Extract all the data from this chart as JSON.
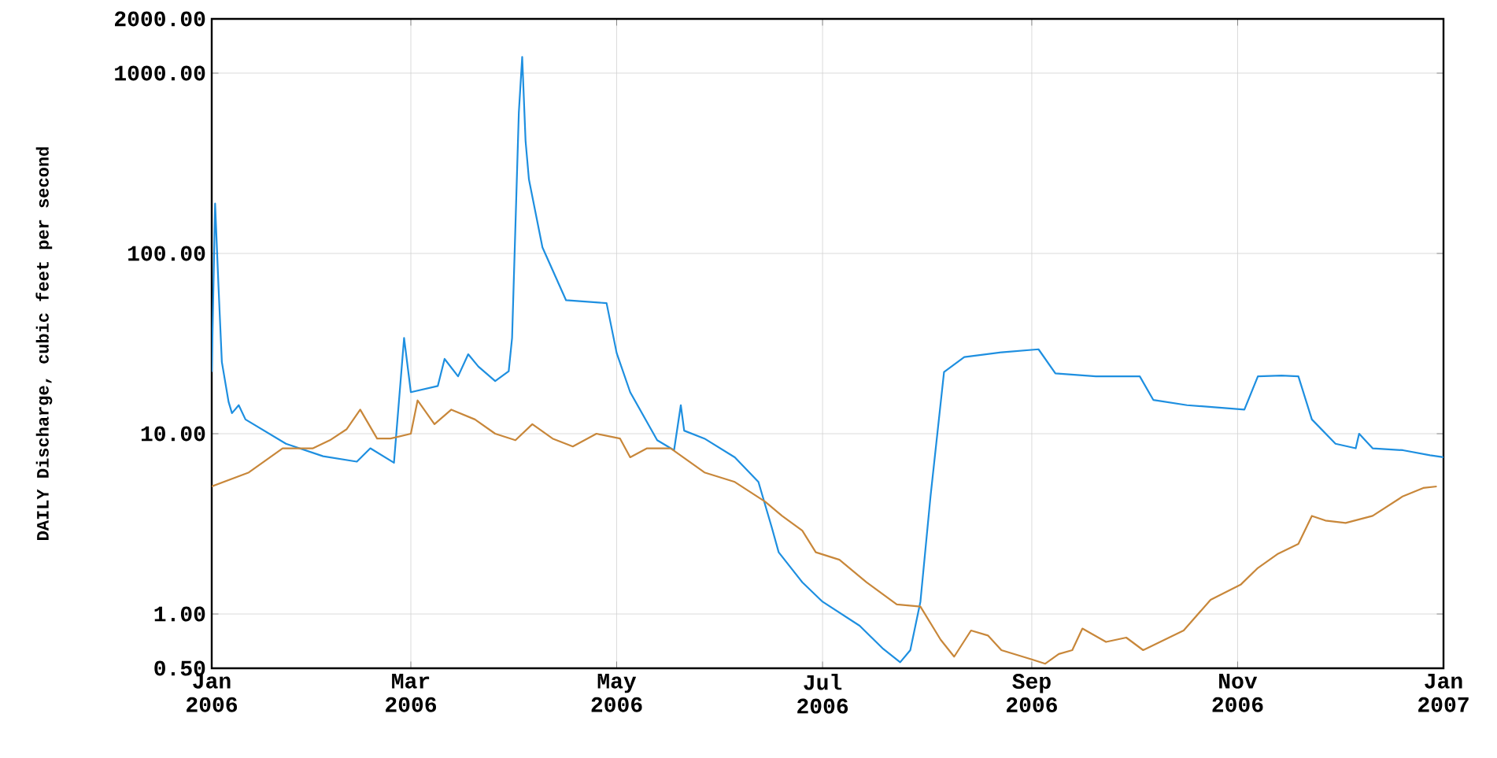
{
  "chart_data": {
    "type": "line",
    "ylabel": "DAILY Discharge, cubic feet per second",
    "log": "y",
    "grid": true,
    "xlim": [
      "2006-01-01",
      "2007-01-01"
    ],
    "xticks": [
      {
        "value": "2006-01-01",
        "label": "Jan 2006"
      },
      {
        "value": "2006-03-01",
        "label": "Mar 2006"
      },
      {
        "value": "2006-05-01",
        "label": "May 2006"
      },
      {
        "value": "2006-07-01",
        "label": "Jul 2006"
      },
      {
        "value": "2006-09-01",
        "label": "Sep 2006"
      },
      {
        "value": "2006-11-01",
        "label": "Nov 2006"
      },
      {
        "value": "2007-01-01",
        "label": "Jan 2007"
      }
    ],
    "ylim": [
      0.5,
      2000
    ],
    "yticks": [
      {
        "value": 0.5,
        "label": "0.50"
      },
      {
        "value": 1,
        "label": "1.00"
      },
      {
        "value": 10,
        "label": "10.00"
      },
      {
        "value": 100,
        "label": "100.00"
      },
      {
        "value": 1000,
        "label": "1000.00"
      },
      {
        "value": 2000,
        "label": "2000.00"
      }
    ],
    "series": [
      {
        "color": "#1e8fe0",
        "x": [
          "2006-01-01",
          "2006-01-02",
          "2006-01-03",
          "2006-01-04",
          "2006-01-06",
          "2006-01-07",
          "2006-01-09",
          "2006-01-11",
          "2006-01-23",
          "2006-02-03",
          "2006-02-13",
          "2006-02-17",
          "2006-02-24",
          "2006-02-27",
          "2006-03-01",
          "2006-03-09",
          "2006-03-11",
          "2006-03-15",
          "2006-03-18",
          "2006-03-21",
          "2006-03-26",
          "2006-03-30",
          "2006-03-31",
          "2006-04-02",
          "2006-04-03",
          "2006-04-04",
          "2006-04-05",
          "2006-04-09",
          "2006-04-16",
          "2006-04-28",
          "2006-05-01",
          "2006-05-05",
          "2006-05-13",
          "2006-05-18",
          "2006-05-20",
          "2006-05-21",
          "2006-05-27",
          "2006-06-05",
          "2006-06-12",
          "2006-06-16",
          "2006-06-18",
          "2006-06-25",
          "2006-07-01",
          "2006-07-12",
          "2006-07-19",
          "2006-07-24",
          "2006-07-27",
          "2006-07-30",
          "2006-08-02",
          "2006-08-06",
          "2006-08-12",
          "2006-08-23",
          "2006-09-03",
          "2006-09-08",
          "2006-09-20",
          "2006-10-03",
          "2006-10-07",
          "2006-10-17",
          "2006-11-03",
          "2006-11-07",
          "2006-11-14",
          "2006-11-19",
          "2006-11-23",
          "2006-11-30",
          "2006-12-06",
          "2006-12-07",
          "2006-12-11",
          "2006-12-20",
          "2006-12-28",
          "2007-01-01"
        ],
        "values": [
          22,
          189,
          66,
          25,
          15,
          13,
          14.4,
          12,
          8.8,
          7.5,
          7,
          8.3,
          6.9,
          34,
          17,
          18.4,
          26,
          20.8,
          27.6,
          23.6,
          19.6,
          22.2,
          34,
          605,
          1230,
          420,
          257,
          108,
          55,
          53,
          28,
          17,
          9.2,
          8.1,
          14.4,
          10.4,
          9.4,
          7.4,
          5.4,
          3.0,
          2.2,
          1.5,
          1.17,
          0.86,
          0.64,
          0.54,
          0.63,
          1.17,
          4.5,
          22,
          26.6,
          28.3,
          29.4,
          21.6,
          20.8,
          20.8,
          15.4,
          14.4,
          13.6,
          20.8,
          21,
          20.8,
          12,
          8.8,
          8.3,
          10,
          8.3,
          8.1,
          7.6,
          7.4
        ]
      },
      {
        "color": "#c8873a",
        "x": [
          "2006-01-01",
          "2006-01-12",
          "2006-01-22",
          "2006-01-31",
          "2006-02-05",
          "2006-02-10",
          "2006-02-14",
          "2006-02-19",
          "2006-02-23",
          "2006-03-01",
          "2006-03-03",
          "2006-03-08",
          "2006-03-13",
          "2006-03-20",
          "2006-03-26",
          "2006-04-01",
          "2006-04-06",
          "2006-04-12",
          "2006-04-18",
          "2006-04-25",
          "2006-05-02",
          "2006-05-05",
          "2006-05-10",
          "2006-05-17",
          "2006-05-27",
          "2006-06-05",
          "2006-06-14",
          "2006-06-19",
          "2006-06-25",
          "2006-06-29",
          "2006-07-06",
          "2006-07-14",
          "2006-07-23",
          "2006-07-30",
          "2006-08-05",
          "2006-08-09",
          "2006-08-14",
          "2006-08-19",
          "2006-08-23",
          "2006-09-01",
          "2006-09-05",
          "2006-09-09",
          "2006-09-13",
          "2006-09-16",
          "2006-09-23",
          "2006-09-29",
          "2006-10-04",
          "2006-10-16",
          "2006-10-24",
          "2006-11-02",
          "2006-11-07",
          "2006-11-13",
          "2006-11-19",
          "2006-11-23",
          "2006-11-27",
          "2006-12-03",
          "2006-12-11",
          "2006-12-20",
          "2006-12-26",
          "2006-12-30"
        ],
        "values": [
          5.1,
          6.1,
          8.3,
          8.3,
          9.2,
          10.6,
          13.6,
          9.4,
          9.4,
          10,
          15.3,
          11.3,
          13.6,
          12,
          10,
          9.2,
          11.3,
          9.4,
          8.5,
          10,
          9.4,
          7.4,
          8.3,
          8.3,
          6.1,
          5.4,
          4.2,
          3.5,
          2.9,
          2.2,
          2.0,
          1.5,
          1.13,
          1.1,
          0.72,
          0.58,
          0.81,
          0.76,
          0.63,
          0.56,
          0.53,
          0.6,
          0.63,
          0.83,
          0.7,
          0.74,
          0.63,
          0.81,
          1.2,
          1.46,
          1.8,
          2.16,
          2.45,
          3.5,
          3.3,
          3.2,
          3.5,
          4.5,
          5.0,
          5.1
        ]
      }
    ]
  }
}
